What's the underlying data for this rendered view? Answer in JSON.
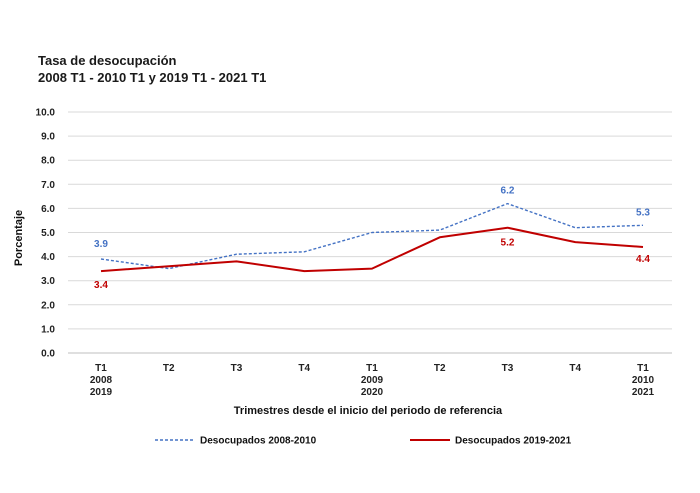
{
  "chart_data": {
    "type": "line",
    "title_line1": "Tasa de desocupación",
    "title_line2": "2008 T1 - 2010 T1 y 2019 T1 - 2021 T1",
    "xlabel": "Trimestres desde el inicio del periodo de referencia",
    "ylabel": "Porcentaje",
    "ylim": [
      0,
      10
    ],
    "y_ticks": [
      "0.0",
      "1.0",
      "2.0",
      "3.0",
      "4.0",
      "5.0",
      "6.0",
      "7.0",
      "8.0",
      "9.0",
      "10.0"
    ],
    "categories": [
      [
        "T1",
        "2008",
        "2019"
      ],
      [
        "T2"
      ],
      [
        "T3"
      ],
      [
        "T4"
      ],
      [
        "T1",
        "2009",
        "2020"
      ],
      [
        "T2"
      ],
      [
        "T3"
      ],
      [
        "T4"
      ],
      [
        "T1",
        "2010",
        "2021"
      ]
    ],
    "series": [
      {
        "name": "Desocupados 2008-2010",
        "color": "#4472C4",
        "style": "dashed",
        "values": [
          3.9,
          3.5,
          4.1,
          4.2,
          5.0,
          5.1,
          6.2,
          5.2,
          5.3
        ],
        "labels": [
          {
            "index": 0,
            "text": "3.9"
          },
          {
            "index": 6,
            "text": "6.2"
          },
          {
            "index": 8,
            "text": "5.3"
          }
        ]
      },
      {
        "name": "Desocupados 2019-2021",
        "color": "#C00000",
        "style": "solid",
        "values": [
          3.4,
          3.6,
          3.8,
          3.4,
          3.5,
          4.8,
          5.2,
          4.6,
          4.4
        ],
        "labels": [
          {
            "index": 0,
            "text": "3.4"
          },
          {
            "index": 6,
            "text": "5.2"
          },
          {
            "index": 8,
            "text": "4.4"
          }
        ]
      }
    ],
    "grid": true,
    "legend_position": "bottom"
  }
}
